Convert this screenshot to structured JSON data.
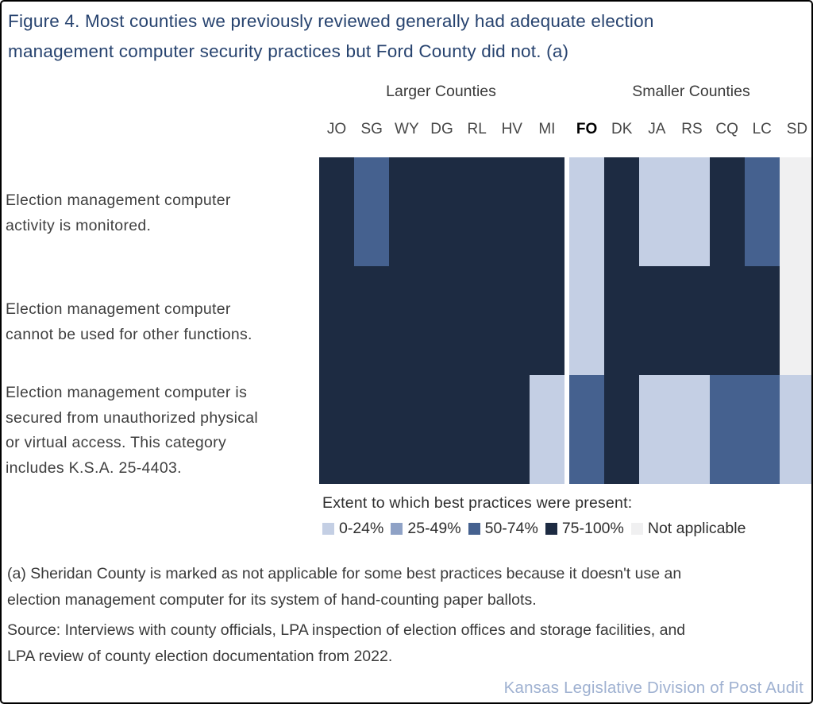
{
  "title": {
    "lines": [
      "Figure 4. Most counties we previously reviewed generally had adequate election",
      "management computer security practices but Ford County did not. (a)"
    ]
  },
  "chart_data": {
    "type": "heatmap",
    "group_headers": [
      {
        "label": "Larger Counties",
        "span": 7
      },
      {
        "label": "Smaller Counties",
        "span": 7
      }
    ],
    "columns": [
      "JO",
      "SG",
      "WY",
      "DG",
      "RL",
      "HV",
      "MI",
      "FO",
      "DK",
      "JA",
      "RS",
      "CQ",
      "LC",
      "SD"
    ],
    "bold_column": "FO",
    "row_labels": [
      [
        "Election management computer",
        "activity is monitored."
      ],
      [
        "Election management computer",
        "cannot be used for other functions."
      ],
      [
        "Election management computer is",
        "secured from unauthorized physical",
        "or virtual access. This category",
        "includes K.S.A. 25-4403."
      ]
    ],
    "rows": [
      [
        "75-100%",
        "50-74%",
        "75-100%",
        "75-100%",
        "75-100%",
        "75-100%",
        "75-100%",
        "0-24%",
        "75-100%",
        "0-24%",
        "0-24%",
        "75-100%",
        "50-74%",
        "Not applicable"
      ],
      [
        "75-100%",
        "75-100%",
        "75-100%",
        "75-100%",
        "75-100%",
        "75-100%",
        "75-100%",
        "0-24%",
        "75-100%",
        "75-100%",
        "75-100%",
        "75-100%",
        "75-100%",
        "Not applicable"
      ],
      [
        "75-100%",
        "75-100%",
        "75-100%",
        "75-100%",
        "75-100%",
        "75-100%",
        "0-24%",
        "50-74%",
        "75-100%",
        "0-24%",
        "0-24%",
        "50-74%",
        "50-74%",
        "0-24%"
      ]
    ],
    "legend": {
      "title": "Extent to which best practices were present:",
      "position": "bottom",
      "items": [
        {
          "label": "0-24%",
          "color": "#c4cfe4"
        },
        {
          "label": "25-49%",
          "color": "#8fa2c6"
        },
        {
          "label": "50-74%",
          "color": "#45618f"
        },
        {
          "label": "75-100%",
          "color": "#1d2b42"
        },
        {
          "label": "Not applicable",
          "color": "#f0f0f1"
        }
      ]
    }
  },
  "footnote": {
    "lines": [
      "(a) Sheridan County is marked as not applicable for some best practices because it doesn't use an",
      "election management computer for its system of hand-counting paper ballots."
    ]
  },
  "source": {
    "lines": [
      "Source: Interviews with county officials, LPA inspection of election offices and storage facilities, and",
      "LPA review of county election documentation from 2022."
    ]
  },
  "footer": "Kansas Legislative Division of Post Audit",
  "colors": {
    "title_text": "#27436f",
    "body_text": "#3a3a3a",
    "footer_text": "#9fb1d1",
    "border": "#000000",
    "background": "#ffffff"
  }
}
